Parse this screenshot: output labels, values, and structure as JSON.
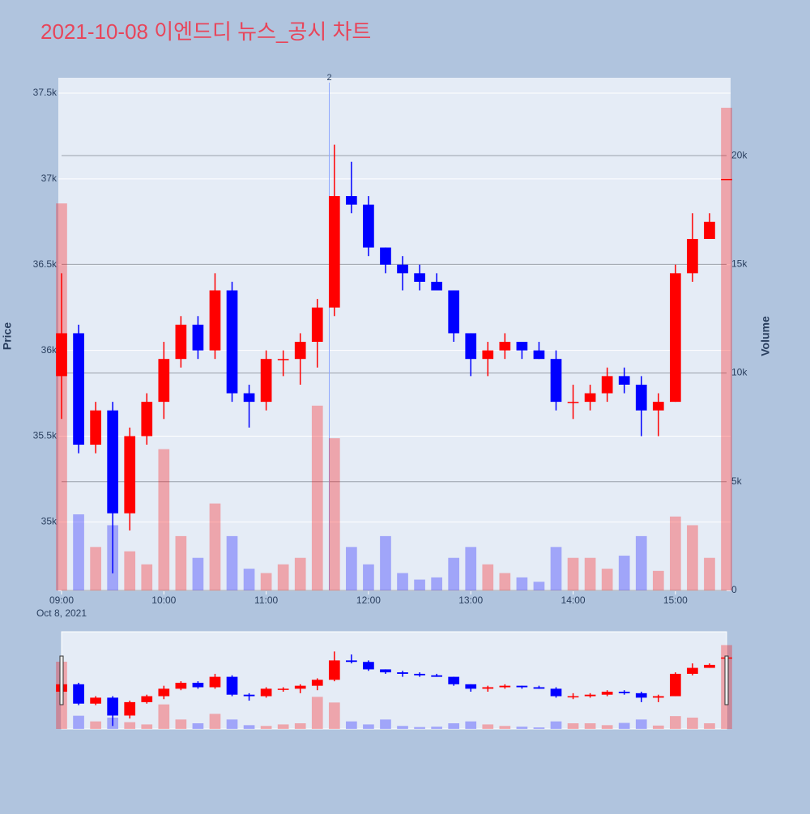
{
  "chart_data": {
    "type": "candlestick",
    "title": "2021-10-08 이엔드디 뉴스_공시 차트",
    "x": [
      "09:00",
      "09:10",
      "09:20",
      "09:30",
      "09:40",
      "09:50",
      "10:00",
      "10:10",
      "10:20",
      "10:30",
      "10:40",
      "10:50",
      "11:00",
      "11:10",
      "11:20",
      "11:30",
      "11:40",
      "11:50",
      "12:00",
      "12:10",
      "12:20",
      "12:30",
      "12:40",
      "12:50",
      "13:00",
      "13:10",
      "13:20",
      "13:30",
      "13:40",
      "13:50",
      "14:00",
      "14:10",
      "14:20",
      "14:30",
      "14:40",
      "14:50",
      "15:00",
      "15:10",
      "15:20",
      "15:30"
    ],
    "open": [
      35850,
      36100,
      35450,
      35650,
      35050,
      35500,
      35700,
      35950,
      36150,
      36000,
      36350,
      35750,
      35700,
      35950,
      35950,
      36050,
      36250,
      36900,
      36850,
      36600,
      36500,
      36450,
      36400,
      36350,
      36100,
      35950,
      36000,
      36050,
      36000,
      35950,
      35700,
      35700,
      35750,
      35850,
      35800,
      35650,
      35700,
      36450,
      36650,
      37000
    ],
    "high": [
      36450,
      36150,
      35700,
      35700,
      35550,
      35750,
      36050,
      36200,
      36200,
      36450,
      36400,
      35800,
      36000,
      36000,
      36100,
      36300,
      37200,
      37100,
      36900,
      36600,
      36550,
      36500,
      36450,
      36350,
      36100,
      36050,
      36100,
      36050,
      36050,
      36000,
      35800,
      35800,
      35900,
      35900,
      35850,
      35750,
      36500,
      36800,
      36800,
      37000
    ],
    "low": [
      35600,
      35400,
      35400,
      34700,
      34950,
      35450,
      35600,
      35900,
      35950,
      35950,
      35700,
      35550,
      35650,
      35850,
      35800,
      35900,
      36200,
      36800,
      36550,
      36450,
      36350,
      36350,
      36350,
      36050,
      35850,
      35850,
      35950,
      35950,
      35950,
      35650,
      35600,
      35650,
      35700,
      35750,
      35500,
      35500,
      35700,
      36400,
      36650,
      37000
    ],
    "close": [
      36100,
      35450,
      35650,
      35050,
      35500,
      35700,
      35950,
      36150,
      36000,
      36350,
      35750,
      35700,
      35950,
      35950,
      36050,
      36250,
      36900,
      36850,
      36600,
      36500,
      36450,
      36400,
      36350,
      36100,
      35950,
      36000,
      36050,
      36000,
      35950,
      35700,
      35700,
      35750,
      35850,
      35800,
      35650,
      35700,
      36450,
      36650,
      36750,
      37000
    ],
    "volume": [
      17800,
      3500,
      2000,
      3000,
      1800,
      1200,
      6500,
      2500,
      1500,
      4000,
      2500,
      1000,
      800,
      1200,
      1500,
      8500,
      7000,
      2000,
      1200,
      2500,
      800,
      500,
      600,
      1500,
      2000,
      1200,
      800,
      600,
      400,
      2000,
      1500,
      1500,
      1000,
      1600,
      2500,
      900,
      3400,
      3000,
      1500,
      22200
    ],
    "increasing_color": "#ff0000",
    "decreasing_color": "#0000ff",
    "xlim": [
      "09:00",
      "15:30"
    ],
    "xticks": [
      "09:00",
      "10:00",
      "11:00",
      "12:00",
      "13:00",
      "14:00",
      "15:00"
    ],
    "x_date_label": "Oct 8, 2021",
    "ylabel": "Price",
    "ylim": [
      34600,
      37590
    ],
    "yticks": [
      {
        "value": 35000,
        "label": "35k"
      },
      {
        "value": 35500,
        "label": "35.5k"
      },
      {
        "value": 36000,
        "label": "36k"
      },
      {
        "value": 36500,
        "label": "36.5k"
      },
      {
        "value": 37000,
        "label": "37k"
      },
      {
        "value": 37500,
        "label": "37.5k"
      }
    ],
    "y2label": "Volume",
    "y2lim": [
      0,
      23580
    ],
    "y2ticks": [
      0,
      {
        "value": 5000,
        "label": "5k"
      },
      {
        "value": 10000,
        "label": "10k"
      },
      {
        "value": 15000,
        "label": "15k"
      },
      {
        "value": 20000,
        "label": "20k"
      }
    ],
    "annotations": [
      {
        "x": "11:37",
        "text": "2"
      }
    ],
    "rangeslider": true
  }
}
